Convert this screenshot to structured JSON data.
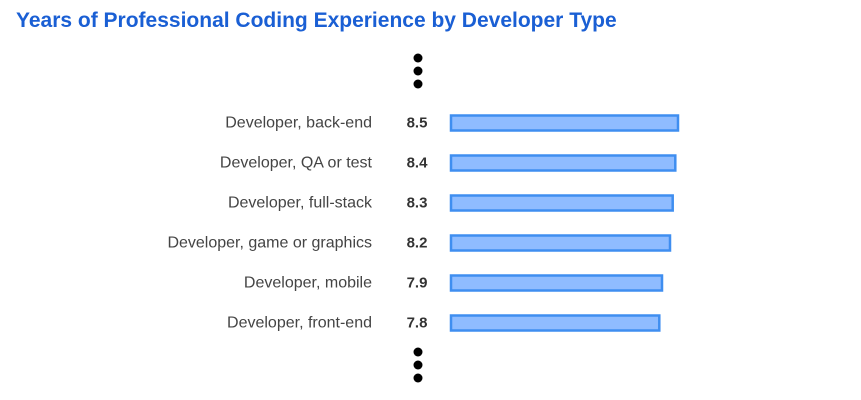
{
  "title": "Years of Professional Coding Experience by Developer Type",
  "colors": {
    "title": "#1a5fd4",
    "bar_fill": "#8fbcff",
    "bar_stroke": "#3f8ef0",
    "dots": "#000000",
    "category_text": "#444444",
    "value_text": "#333333"
  },
  "chart_data": {
    "type": "bar",
    "orientation": "horizontal",
    "title": "Years of Professional Coding Experience by Developer Type",
    "categories": [
      "Developer, back-end",
      "Developer, QA or test",
      "Developer, full-stack",
      "Developer, game or graphics",
      "Developer, mobile",
      "Developer, front-end"
    ],
    "values": [
      8.5,
      8.4,
      8.3,
      8.2,
      7.9,
      7.8
    ],
    "value_labels": [
      "8.5",
      "8.4",
      "8.3",
      "8.2",
      "7.9",
      "7.8"
    ],
    "xlim": [
      0,
      8.5
    ],
    "truncated_above": true,
    "truncated_below": true,
    "grid": false,
    "legend": "none"
  }
}
